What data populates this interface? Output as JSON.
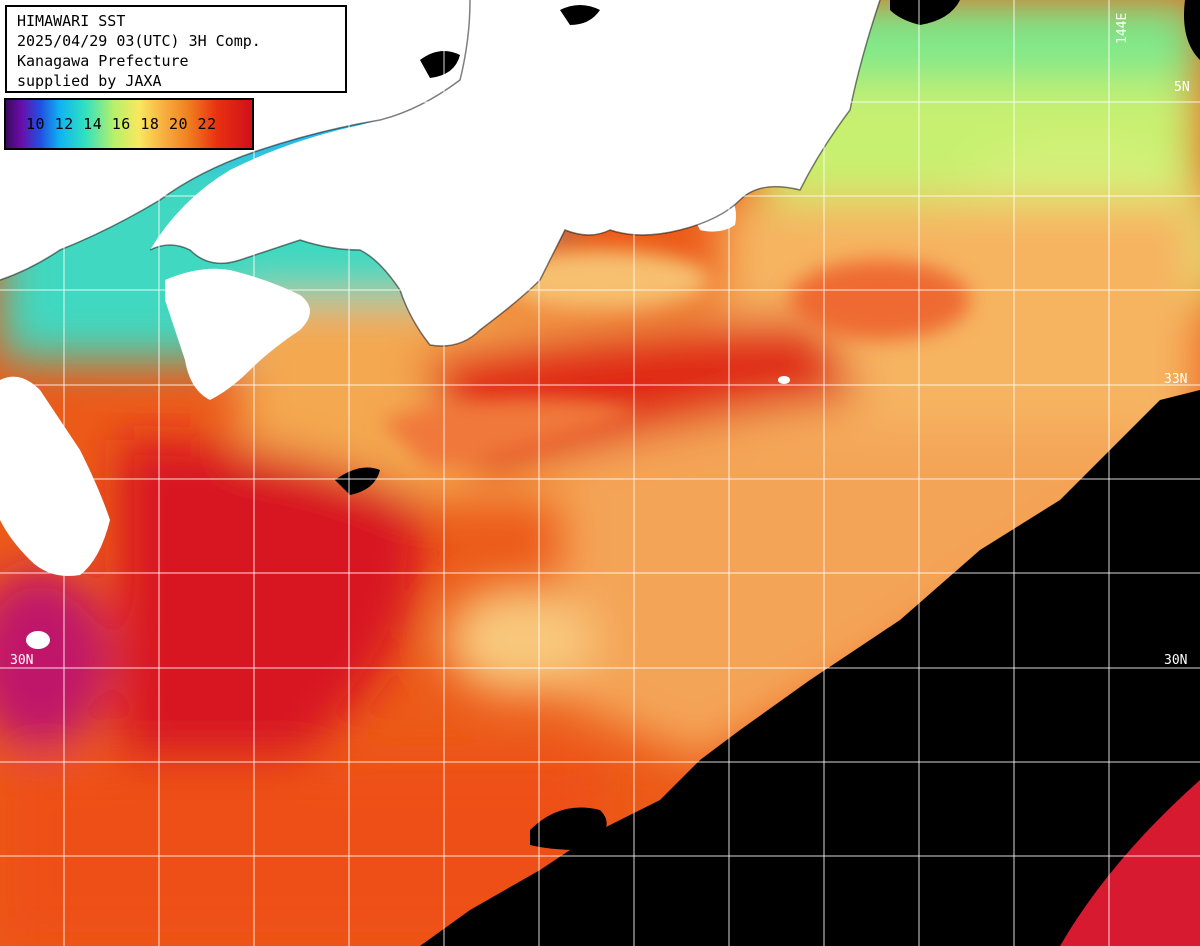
{
  "info": {
    "line1": "HIMAWARI SST",
    "line2": "2025/04/29 03(UTC) 3H Comp.",
    "line3": "Kanagawa Prefecture",
    "line4": "supplied by JAXA"
  },
  "legend": {
    "labels": "10 12 14 16 18 20 22",
    "unit_values": [
      10,
      12,
      14,
      16,
      18,
      20,
      22
    ]
  },
  "grid_labels": {
    "lat_30_left": "30N",
    "lat_30_right": "30N",
    "lat_33_right": "33N",
    "lat_35_right": "5N",
    "lon_144_top": "144E"
  },
  "colors": {
    "land": "#ffffff",
    "no_data": "#000000",
    "warm_core": "#d41818",
    "warm": "#ee4a14",
    "mid": "#f6b060",
    "cool": "#c4f06c",
    "cold": "#1ea0f0",
    "grid": "#ffffff"
  }
}
